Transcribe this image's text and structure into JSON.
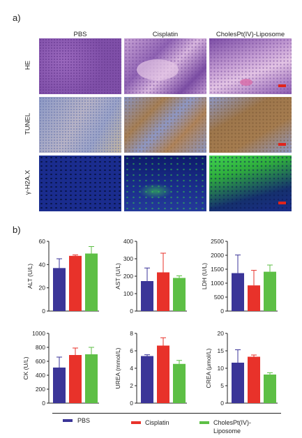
{
  "figure": {
    "panel_a_label": "a)",
    "panel_b_label": "b)",
    "columns": [
      "PBS",
      "Cisplatin",
      "CholesPt(IV)-Liposome"
    ],
    "rows": [
      "HE",
      "TUNEL",
      "γ-H2A.X"
    ]
  },
  "colors": {
    "PBS": "#3b3598",
    "Cisplatin": "#e8322a",
    "Liposome": "#5dbf45",
    "he_base": "#8a5ab0",
    "tunel_blue": "#8a98c8",
    "tunel_brown": "#a0774a",
    "h2ax_bg": "#172a8c",
    "h2ax_green": "#38d04a",
    "scale_bar": "#e0241c"
  },
  "legend": [
    {
      "label": "PBS",
      "color": "#3b3598"
    },
    {
      "label": "Cisplatin",
      "color": "#e8322a"
    },
    {
      "label_line1": "CholesPt(IV)-",
      "label_line2": "Liposome",
      "color": "#5dbf45"
    }
  ],
  "chart_data": [
    {
      "type": "bar",
      "ylabel": "ALT (U/L)",
      "ylim": [
        0,
        60
      ],
      "yticks": [
        "0",
        "20",
        "40",
        "60"
      ],
      "yticks_num": [
        0,
        20,
        40,
        60
      ],
      "series": [
        {
          "name": "PBS",
          "values": [
            37
          ],
          "err": [
            8
          ]
        },
        {
          "name": "Cisplatin",
          "values": [
            47.5
          ],
          "err": [
            0.8
          ]
        },
        {
          "name": "CholesPt(IV)-Liposome",
          "values": [
            49.5
          ],
          "err": [
            6
          ]
        }
      ]
    },
    {
      "type": "bar",
      "ylabel": "AST (U/L)",
      "ylim": [
        0,
        400
      ],
      "yticks": [
        "0",
        "100",
        "200",
        "300",
        "400"
      ],
      "yticks_num": [
        0,
        100,
        200,
        300,
        400
      ],
      "series": [
        {
          "name": "PBS",
          "values": [
            172
          ],
          "err": [
            75
          ]
        },
        {
          "name": "Cisplatin",
          "values": [
            222
          ],
          "err": [
            110
          ]
        },
        {
          "name": "CholesPt(IV)-Liposome",
          "values": [
            190
          ],
          "err": [
            12
          ]
        }
      ]
    },
    {
      "type": "bar",
      "ylabel": "LDH (U/L)",
      "ylim": [
        0,
        2500
      ],
      "yticks": [
        "0",
        "500",
        "1000",
        "1500",
        "2000",
        "2500"
      ],
      "yticks_num": [
        0,
        500,
        1000,
        1500,
        2000,
        2500
      ],
      "series": [
        {
          "name": "PBS",
          "values": [
            1360
          ],
          "err": [
            650
          ]
        },
        {
          "name": "Cisplatin",
          "values": [
            920
          ],
          "err": [
            540
          ]
        },
        {
          "name": "CholesPt(IV)-Liposome",
          "values": [
            1410
          ],
          "err": [
            240
          ]
        }
      ]
    },
    {
      "type": "bar",
      "ylabel": "CK (U/L)",
      "ylim": [
        0,
        1000
      ],
      "yticks": [
        "0",
        "200",
        "400",
        "600",
        "800",
        "1000"
      ],
      "yticks_num": [
        0,
        200,
        400,
        600,
        800,
        1000
      ],
      "series": [
        {
          "name": "PBS",
          "values": [
            510
          ],
          "err": [
            150
          ]
        },
        {
          "name": "Cisplatin",
          "values": [
            690
          ],
          "err": [
            100
          ]
        },
        {
          "name": "CholesPt(IV)-Liposome",
          "values": [
            700
          ],
          "err": [
            100
          ]
        }
      ]
    },
    {
      "type": "bar",
      "ylabel": "UREA (mmol/L)",
      "ylim": [
        0,
        8
      ],
      "yticks": [
        "0",
        "2",
        "4",
        "6",
        "8"
      ],
      "yticks_num": [
        0,
        2,
        4,
        6,
        8
      ],
      "series": [
        {
          "name": "PBS",
          "values": [
            5.4
          ],
          "err": [
            0.15
          ]
        },
        {
          "name": "Cisplatin",
          "values": [
            6.6
          ],
          "err": [
            0.9
          ]
        },
        {
          "name": "CholesPt(IV)-Liposome",
          "values": [
            4.5
          ],
          "err": [
            0.4
          ]
        }
      ]
    },
    {
      "type": "bar",
      "ylabel": "CREA (μmol/L)",
      "ylim": [
        0,
        20
      ],
      "yticks": [
        "0",
        "5",
        "10",
        "15",
        "20"
      ],
      "yticks_num": [
        0,
        5,
        10,
        15,
        20
      ],
      "series": [
        {
          "name": "PBS",
          "values": [
            11.6
          ],
          "err": [
            3.7
          ]
        },
        {
          "name": "Cisplatin",
          "values": [
            13.3
          ],
          "err": [
            0.5
          ]
        },
        {
          "name": "CholesPt(IV)-Liposome",
          "values": [
            8.2
          ],
          "err": [
            0.5
          ]
        }
      ]
    }
  ]
}
